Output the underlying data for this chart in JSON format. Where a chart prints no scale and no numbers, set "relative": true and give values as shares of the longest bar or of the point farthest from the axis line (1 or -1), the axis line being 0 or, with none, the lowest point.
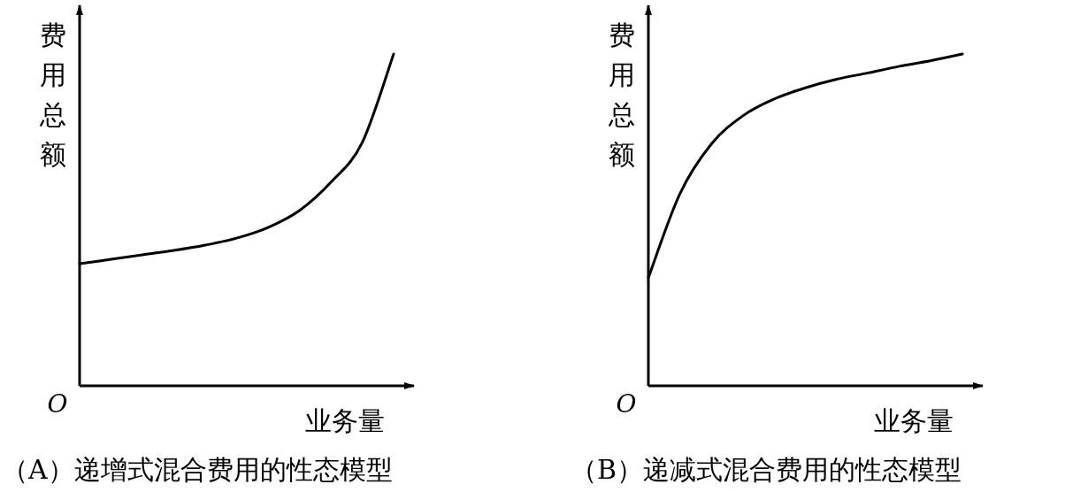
{
  "chart_data": [
    {
      "type": "line",
      "title": "（A）递增式混合费用的性态模型",
      "xlabel": "业务量",
      "ylabel": "费用总额",
      "annotations": [
        "O"
      ],
      "relative": true,
      "color": "#000000",
      "categories": [
        null,
        null,
        null,
        null,
        null,
        null,
        null,
        null,
        null,
        null,
        null
      ],
      "values": [
        0.368,
        0.381,
        0.395,
        0.408,
        0.424,
        0.445,
        0.477,
        0.528,
        0.613,
        0.733,
        1
      ]
    },
    {
      "type": "line",
      "title": "（B）递减式混合费用的性态模型",
      "xlabel": "业务量",
      "ylabel": "费用总额",
      "annotations": [
        "O"
      ],
      "relative": true,
      "color": "#000000",
      "categories": [
        null,
        null,
        null,
        null,
        null,
        null,
        null,
        null,
        null,
        null,
        null
      ],
      "values": [
        0.326,
        0.578,
        0.728,
        0.813,
        0.864,
        0.898,
        0.924,
        0.943,
        0.963,
        0.98,
        1
      ]
    }
  ]
}
